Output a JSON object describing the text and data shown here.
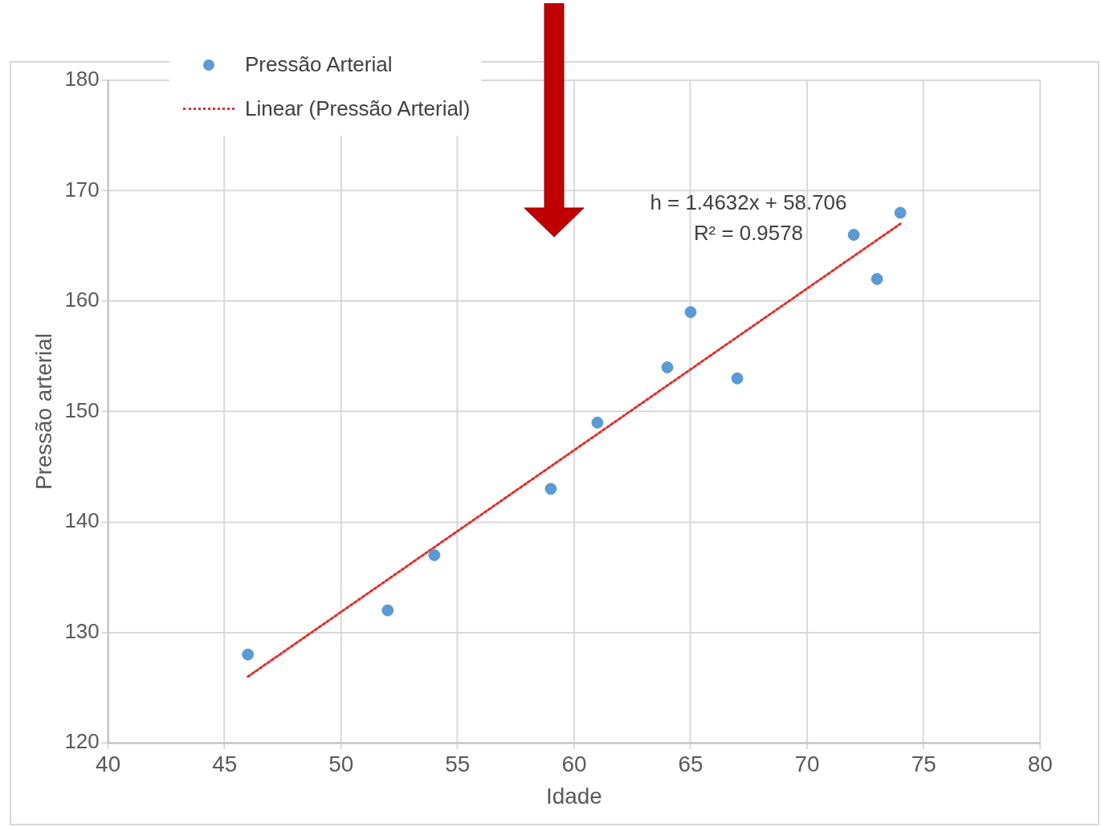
{
  "chart_data": {
    "type": "scatter",
    "xlabel": "Idade",
    "ylabel": "Pressão arterial",
    "xlim": [
      40,
      80
    ],
    "xticks": [
      40,
      45,
      50,
      55,
      60,
      65,
      70,
      75,
      80
    ],
    "ylim": [
      120,
      180
    ],
    "yticks": [
      120,
      130,
      140,
      150,
      160,
      170,
      180
    ],
    "grid": true,
    "legend": "top left",
    "series": [
      {
        "name": "Pressão Arterial",
        "type": "scatter",
        "marker": "circle",
        "color": "#5b9bd5",
        "x": [
          46,
          52,
          54,
          59,
          61,
          64,
          65,
          67,
          72,
          73,
          74
        ],
        "values": [
          128,
          132,
          137,
          143,
          149,
          154,
          159,
          153,
          166,
          162,
          168
        ]
      },
      {
        "name": "Linear (Pressão Arterial)",
        "type": "line",
        "marker": "none",
        "color": "#e0302c",
        "line_style": "dotted",
        "x": [
          46,
          74
        ],
        "values": [
          126.0,
          167.0
        ]
      }
    ],
    "annotations": [
      "h = 1.4632x + 58.706",
      "R² = 0.9578"
    ]
  }
}
